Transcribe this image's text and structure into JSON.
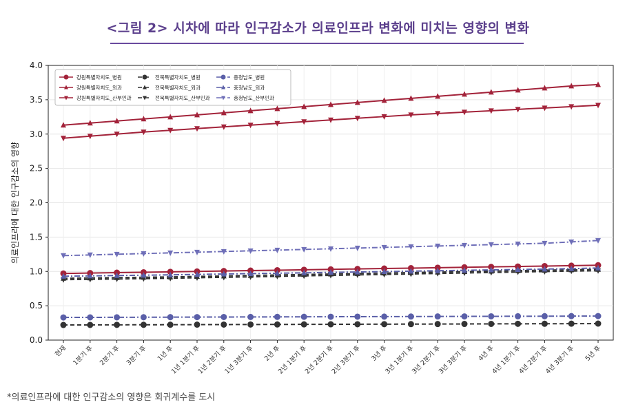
{
  "page": {
    "title": "<그림 2> 시차에 따라 인구감소가 의료인프라 변화에 미치는 영향의 변화",
    "footnote": "*의료인프라에 대한 인구감소의 영향은 회귀계수를 도시"
  },
  "chart_data": {
    "type": "line",
    "title": "",
    "xlabel": "",
    "ylabel": "의료인프라에 대한 인구감소의 영향",
    "ylim": [
      0.0,
      4.0
    ],
    "yticks": [
      "0.0",
      "0.5",
      "1.0",
      "1.5",
      "2.0",
      "2.5",
      "3.0",
      "3.5",
      "4.0"
    ],
    "categories": [
      "현재",
      "1분기 후",
      "2분기 후",
      "3분기 후",
      "1년 후",
      "1년 1분기 후",
      "1년 2분기 후",
      "1년 3분기 후",
      "2년 후",
      "2년 1분기 후",
      "2년 2분기 후",
      "2년 3분기 후",
      "3년 후",
      "3년 1분기 후",
      "3년 2분기 후",
      "3년 3분기 후",
      "4년 후",
      "4년 1분기 후",
      "4년 2분기 후",
      "4년 3분기 후",
      "5년 후"
    ],
    "legend_position": "top-left",
    "grid": true,
    "series": [
      {
        "name": "강원특별자치도_병원",
        "color": "#a3233a",
        "marker": "circle",
        "dash": "solid",
        "values": [
          0.97,
          0.976,
          0.982,
          0.988,
          0.994,
          1.0,
          1.006,
          1.012,
          1.018,
          1.024,
          1.03,
          1.036,
          1.042,
          1.048,
          1.054,
          1.06,
          1.066,
          1.072,
          1.078,
          1.084,
          1.09
        ]
      },
      {
        "name": "강원특별자치도_외과",
        "color": "#a3233a",
        "marker": "triangle-up",
        "dash": "solid",
        "values": [
          3.13,
          3.16,
          3.19,
          3.22,
          3.25,
          3.28,
          3.31,
          3.34,
          3.37,
          3.4,
          3.43,
          3.46,
          3.49,
          3.52,
          3.55,
          3.58,
          3.61,
          3.64,
          3.67,
          3.7,
          3.72
        ]
      },
      {
        "name": "강원특별자치도_산부인과",
        "color": "#a3233a",
        "marker": "triangle-down",
        "dash": "solid",
        "values": [
          2.94,
          2.97,
          3.0,
          3.03,
          3.055,
          3.08,
          3.105,
          3.13,
          3.155,
          3.18,
          3.205,
          3.23,
          3.255,
          3.28,
          3.3,
          3.32,
          3.34,
          3.36,
          3.38,
          3.4,
          3.42
        ]
      },
      {
        "name": "전북특별자치도_병원",
        "color": "#333333",
        "marker": "circle",
        "dash": "dashed",
        "values": [
          0.22,
          0.221,
          0.222,
          0.223,
          0.224,
          0.225,
          0.226,
          0.227,
          0.228,
          0.229,
          0.23,
          0.231,
          0.232,
          0.233,
          0.234,
          0.235,
          0.236,
          0.237,
          0.238,
          0.239,
          0.24
        ]
      },
      {
        "name": "전북특별자치도_외과",
        "color": "#333333",
        "marker": "triangle-up",
        "dash": "dashed",
        "values": [
          0.9,
          0.905,
          0.91,
          0.915,
          0.92,
          0.927,
          0.934,
          0.941,
          0.948,
          0.955,
          0.962,
          0.969,
          0.976,
          0.983,
          0.99,
          0.997,
          1.004,
          1.011,
          1.018,
          1.024,
          1.03
        ]
      },
      {
        "name": "전북특별자치도_산부인과",
        "color": "#333333",
        "marker": "triangle-down",
        "dash": "dashed",
        "values": [
          0.88,
          0.885,
          0.89,
          0.895,
          0.9,
          0.907,
          0.914,
          0.921,
          0.928,
          0.935,
          0.942,
          0.949,
          0.956,
          0.963,
          0.97,
          0.977,
          0.984,
          0.991,
          0.998,
          1.005,
          1.01
        ]
      },
      {
        "name": "충청남도_병원",
        "color": "#5a5fa8",
        "marker": "circle",
        "dash": "dashdot",
        "values": [
          0.33,
          0.331,
          0.332,
          0.333,
          0.334,
          0.335,
          0.336,
          0.337,
          0.338,
          0.339,
          0.34,
          0.341,
          0.342,
          0.343,
          0.344,
          0.345,
          0.346,
          0.347,
          0.348,
          0.349,
          0.35
        ]
      },
      {
        "name": "충청남도_외과",
        "color": "#5a5fa8",
        "marker": "triangle-up",
        "dash": "dashdot",
        "values": [
          0.93,
          0.935,
          0.94,
          0.945,
          0.95,
          0.956,
          0.962,
          0.968,
          0.974,
          0.98,
          0.986,
          0.992,
          0.998,
          1.004,
          1.01,
          1.016,
          1.022,
          1.028,
          1.034,
          1.04,
          1.05
        ]
      },
      {
        "name": "충청남도_산부인과",
        "color": "#6f6fb8",
        "marker": "triangle-down",
        "dash": "dashdot",
        "values": [
          1.23,
          1.24,
          1.25,
          1.26,
          1.27,
          1.28,
          1.29,
          1.3,
          1.31,
          1.32,
          1.33,
          1.34,
          1.35,
          1.36,
          1.37,
          1.38,
          1.39,
          1.4,
          1.41,
          1.43,
          1.45
        ]
      }
    ]
  }
}
